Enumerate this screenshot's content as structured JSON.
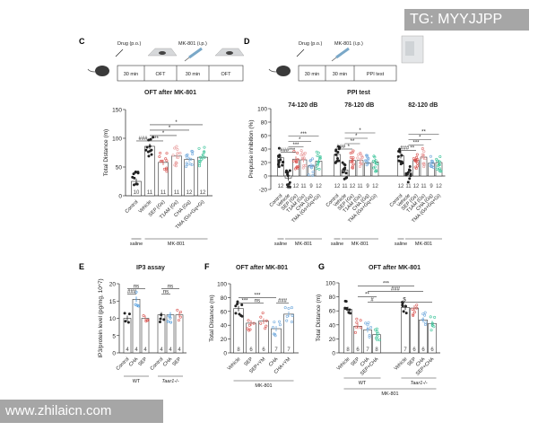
{
  "watermarks": {
    "top_right": "TG: MYYJJPP",
    "bottom_left": "www.zhilaicn.com"
  },
  "timelines": [
    {
      "panel": "C",
      "drug": "Drug (p.o.)",
      "mk": "MK-801 (i.p.)",
      "cells": [
        "30 min",
        "OFT",
        "30 min",
        "OFT"
      ]
    },
    {
      "panel": "D",
      "drug": "Drug (p.o.)",
      "mk": "MK-801 (i.p.)",
      "cells": [
        "30 min",
        "30 min",
        "PPI test"
      ]
    }
  ],
  "chart_data": [
    {
      "panel": "C",
      "type": "bar",
      "title": "OFT after MK-801",
      "ylabel": "Total Distance (m)",
      "ylim": [
        0,
        150
      ],
      "yticks": [
        0,
        50,
        100,
        150
      ],
      "categories": [
        "Control",
        "Vehicle",
        "SEP (Gs)",
        "T1AM (Gs)",
        "CHA (Gq)",
        "TMA (Gs+Gq+Gi)"
      ],
      "values": [
        25,
        86,
        58,
        69,
        63,
        67
      ],
      "n": [
        10,
        11,
        11,
        11,
        12,
        12
      ],
      "colors": [
        "#222222",
        "#222222",
        "#d9534f",
        "#e89a9a",
        "#6fa8dc",
        "#3cc49a"
      ],
      "annotations": [
        {
          "from": 0,
          "to": 1,
          "label": "###"
        },
        {
          "from": 1,
          "to": 2,
          "label": "**"
        },
        {
          "from": 1,
          "to": 3,
          "label": "*"
        },
        {
          "from": 1,
          "to": 4,
          "label": "*"
        },
        {
          "from": 1,
          "to": 5,
          "label": "*"
        }
      ],
      "groups": [
        {
          "label": "saline",
          "from": 0,
          "to": 0,
          "row": 0
        },
        {
          "label": "MK-801",
          "from": 1,
          "to": 5,
          "row": 0
        }
      ]
    },
    {
      "panel": "D",
      "type": "bar",
      "title": "PPI test",
      "ylabel": "Prepulse inhibition (%)",
      "ylim": [
        -20,
        100
      ],
      "yticks": [
        -20,
        0,
        20,
        40,
        60,
        80,
        100
      ],
      "categories": [
        "Control",
        "Vehicle",
        "SEP (Gs)",
        "T1AM (Gs)",
        "CHA (Gq)",
        "TMA (Gs+Gq+Gi)"
      ],
      "n": [
        12,
        11,
        12,
        11,
        9,
        12
      ],
      "colors": [
        "#222222",
        "#222222",
        "#d9534f",
        "#e89a9a",
        "#6fa8dc",
        "#3cc49a"
      ],
      "series": [
        {
          "name": "74-120 dB",
          "values": [
            27,
            -3,
            25,
            24,
            15,
            22
          ],
          "annotations": [
            {
              "from": 0,
              "to": 1,
              "label": "###"
            },
            {
              "from": 1,
              "to": 2,
              "label": "***"
            },
            {
              "from": 1,
              "to": 3,
              "label": "***"
            },
            {
              "from": 1,
              "to": 4,
              "label": "*"
            },
            {
              "from": 1,
              "to": 5,
              "label": "***"
            }
          ]
        },
        {
          "name": "78-120 dB",
          "values": [
            32,
            9,
            23,
            23,
            19,
            21
          ],
          "annotations": [
            {
              "from": 0,
              "to": 1,
              "label": "###"
            },
            {
              "from": 1,
              "to": 2,
              "label": "*"
            },
            {
              "from": 1,
              "to": 3,
              "label": "**"
            },
            {
              "from": 1,
              "to": 4,
              "label": "*"
            },
            {
              "from": 1,
              "to": 5,
              "label": "*"
            }
          ]
        },
        {
          "name": "82-120 dB",
          "values": [
            30,
            5,
            23,
            28,
            19,
            20
          ],
          "annotations": [
            {
              "from": 0,
              "to": 1,
              "label": "###"
            },
            {
              "from": 1,
              "to": 2,
              "label": "**"
            },
            {
              "from": 1,
              "to": 3,
              "label": "***"
            },
            {
              "from": 1,
              "to": 4,
              "label": "*"
            },
            {
              "from": 1,
              "to": 5,
              "label": "**"
            }
          ]
        }
      ],
      "groups": [
        {
          "label": "saline",
          "from": 0,
          "to": 0,
          "row": 0
        },
        {
          "label": "MK-801",
          "from": 1,
          "to": 5,
          "row": 0
        }
      ]
    },
    {
      "panel": "E",
      "type": "bar",
      "title": "IP3 assay",
      "ylabel": "IP3/protein level (pg/mg, 10^7)",
      "ylim": [
        0,
        20
      ],
      "yticks": [
        0,
        5,
        10,
        15,
        20
      ],
      "categories": [
        "Control",
        "CHA",
        "SEP",
        "Control",
        "CHA",
        "SEP"
      ],
      "values": [
        10,
        15.5,
        10,
        11,
        11,
        11
      ],
      "n": [
        4,
        4,
        4,
        4,
        4,
        4
      ],
      "colors": [
        "#222222",
        "#3a8fd9",
        "#d9534f",
        "#222222",
        "#3a8fd9",
        "#d9534f"
      ],
      "annotations": [
        {
          "from": 0,
          "to": 1,
          "label": "###"
        },
        {
          "from": 0,
          "to": 2,
          "label": "ns"
        },
        {
          "from": 3,
          "to": 4,
          "label": "ns"
        },
        {
          "from": 3,
          "to": 5,
          "label": "ns"
        }
      ],
      "groups": [
        {
          "label": "WT",
          "from": 0,
          "to": 2,
          "row": 0
        },
        {
          "label": "Taar1-/-",
          "from": 3,
          "to": 5,
          "row": 0
        }
      ]
    },
    {
      "panel": "F",
      "type": "bar",
      "title": "OFT after MK-801",
      "ylabel": "Total Distance (m)",
      "ylim": [
        0,
        100
      ],
      "yticks": [
        0,
        20,
        40,
        60,
        80,
        100
      ],
      "categories": [
        "Vehicle",
        "SEP",
        "SEP+YM",
        "CHA",
        "CHA+YM"
      ],
      "values": [
        64,
        43,
        46,
        35,
        56
      ],
      "n": [
        8,
        6,
        6,
        7,
        7
      ],
      "colors": [
        "#222222",
        "#d9534f",
        "#d9534f",
        "#6fa8dc",
        "#6fa8dc"
      ],
      "annotations": [
        {
          "from": 0,
          "to": 1,
          "label": "***"
        },
        {
          "from": 1,
          "to": 2,
          "label": "ns"
        },
        {
          "from": 3,
          "to": 4,
          "label": "###"
        },
        {
          "from": 0,
          "to": 3,
          "label": "***"
        }
      ],
      "groups": [
        {
          "label": "MK-801",
          "from": 0,
          "to": 4,
          "row": 0
        }
      ]
    },
    {
      "panel": "G",
      "type": "bar",
      "title": "OFT after MK-801",
      "ylabel": "Total Distance (m)",
      "ylim": [
        0,
        100
      ],
      "yticks": [
        0,
        20,
        40,
        60,
        80,
        100
      ],
      "categories": [
        "Vehicle",
        "SEP",
        "CHA",
        "SEP+CHA",
        "Vehicle",
        "SEP",
        "CHA",
        "SEP+CHA"
      ],
      "values": [
        62,
        38,
        33,
        26,
        65,
        64,
        47,
        42
      ],
      "n": [
        8,
        6,
        7,
        8,
        7,
        6,
        6,
        6
      ],
      "colors": [
        "#222222",
        "#d9534f",
        "#6fa8dc",
        "#3cc49a",
        "#222222",
        "#d9534f",
        "#6fa8dc",
        "#3cc49a"
      ],
      "annotations": [
        {
          "from": 2,
          "to": 3,
          "label": "#"
        },
        {
          "from": 1,
          "to": 3,
          "label": "**"
        },
        {
          "from": 3,
          "to": 7,
          "label": "$"
        },
        {
          "from": 2,
          "to": 6,
          "label": "###"
        },
        {
          "from": 1,
          "to": 5,
          "label": "***"
        }
      ],
      "groups": [
        {
          "label": "WT",
          "from": 0,
          "to": 3,
          "row": 0
        },
        {
          "label": "Taar1-/-",
          "from": 4,
          "to": 7,
          "row": 0
        },
        {
          "label": "MK-801",
          "from": 0,
          "to": 7,
          "row": 1
        }
      ]
    }
  ]
}
